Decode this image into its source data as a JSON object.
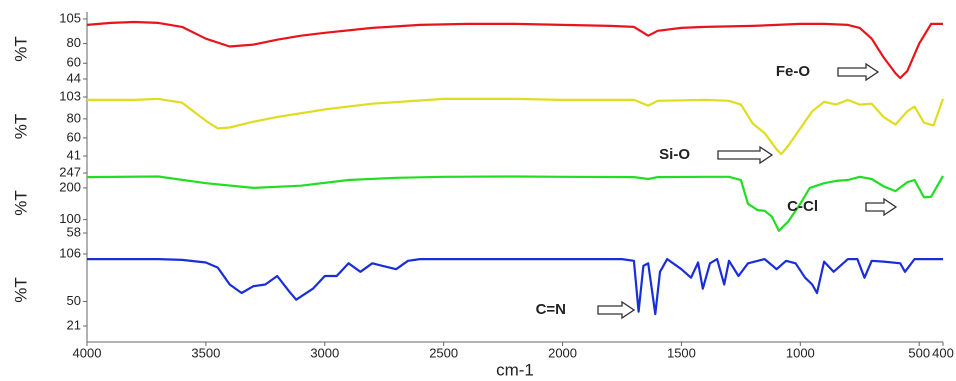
{
  "chart_data": [
    {
      "type": "line",
      "ylabel": "%T",
      "color": "#e8141c",
      "annotation": "Fe-O",
      "xlim": [
        4000,
        400
      ],
      "ylim": [
        44,
        105
      ],
      "yticks": [
        105,
        80,
        60,
        44
      ],
      "x": [
        4000,
        3900,
        3800,
        3700,
        3600,
        3500,
        3400,
        3300,
        3200,
        3100,
        3000,
        2800,
        2600,
        2400,
        2200,
        2000,
        1800,
        1700,
        1640,
        1600,
        1500,
        1400,
        1200,
        1000,
        900,
        800,
        750,
        700,
        650,
        600,
        580,
        550,
        500,
        450,
        400
      ],
      "values": [
        99,
        101,
        102,
        101,
        97,
        85,
        77,
        79,
        84,
        88,
        91,
        96,
        99,
        100,
        100,
        99,
        98,
        97,
        88,
        93,
        96,
        97,
        98,
        100,
        100,
        99,
        96,
        85,
        66,
        50,
        45,
        52,
        80,
        100,
        100
      ]
    },
    {
      "type": "line",
      "ylabel": "%T",
      "color": "#e0dc22",
      "annotation": "Si-O",
      "xlim": [
        4000,
        400
      ],
      "ylim": [
        41,
        103
      ],
      "yticks": [
        103,
        80,
        60,
        41
      ],
      "x": [
        4000,
        3800,
        3700,
        3600,
        3500,
        3450,
        3400,
        3300,
        3200,
        3000,
        2800,
        2500,
        2200,
        2000,
        1800,
        1700,
        1640,
        1600,
        1400,
        1300,
        1250,
        1200,
        1150,
        1100,
        1080,
        1050,
        1000,
        950,
        900,
        850,
        800,
        750,
        700,
        650,
        600,
        550,
        520,
        480,
        440,
        400
      ],
      "values": [
        100,
        100,
        101,
        97,
        78,
        70,
        71,
        77,
        82,
        90,
        96,
        101,
        101,
        100,
        100,
        100,
        94,
        99,
        100,
        99,
        95,
        75,
        65,
        48,
        43,
        52,
        70,
        88,
        98,
        95,
        100,
        95,
        96,
        82,
        74,
        88,
        93,
        76,
        73,
        101
      ]
    },
    {
      "type": "line",
      "ylabel": "%T",
      "color": "#22dd22",
      "annotation": "C-Cl",
      "xlim": [
        4000,
        400
      ],
      "ylim": [
        58,
        247
      ],
      "yticks": [
        247,
        200,
        100,
        58
      ],
      "x": [
        4000,
        3700,
        3500,
        3300,
        3100,
        2900,
        2700,
        2500,
        2200,
        2000,
        1700,
        1640,
        1600,
        1400,
        1300,
        1250,
        1220,
        1180,
        1150,
        1120,
        1090,
        1050,
        1000,
        960,
        900,
        850,
        800,
        750,
        700,
        650,
        600,
        550,
        520,
        480,
        450,
        400
      ],
      "values": [
        234,
        236,
        215,
        200,
        207,
        225,
        232,
        235,
        236,
        235,
        234,
        228,
        234,
        235,
        235,
        225,
        150,
        130,
        128,
        110,
        65,
        95,
        150,
        200,
        215,
        222,
        225,
        235,
        228,
        205,
        190,
        218,
        225,
        170,
        172,
        238
      ]
    },
    {
      "type": "line",
      "ylabel": "%T",
      "color": "#1a2ed8",
      "annotation": "C=N",
      "xlabel": "cm-1",
      "xlim": [
        4000,
        400
      ],
      "xticks": [
        4000,
        3500,
        3000,
        2500,
        2000,
        1500,
        1000,
        500,
        400
      ],
      "ylim": [
        21,
        106
      ],
      "yticks": [
        106,
        50,
        21
      ],
      "x": [
        4000,
        3700,
        3600,
        3500,
        3450,
        3400,
        3350,
        3300,
        3250,
        3200,
        3150,
        3120,
        3050,
        3000,
        2950,
        2900,
        2850,
        2800,
        2700,
        2650,
        2600,
        2400,
        2000,
        1750,
        1700,
        1680,
        1660,
        1640,
        1610,
        1590,
        1560,
        1500,
        1460,
        1430,
        1410,
        1380,
        1350,
        1320,
        1300,
        1260,
        1220,
        1150,
        1100,
        1060,
        1020,
        980,
        950,
        930,
        900,
        860,
        800,
        760,
        730,
        700,
        650,
        580,
        560,
        520,
        450,
        400
      ],
      "values": [
        100,
        100,
        99,
        96,
        90,
        70,
        60,
        68,
        70,
        80,
        62,
        52,
        65,
        80,
        80,
        95,
        85,
        95,
        88,
        98,
        100,
        100,
        100,
        100,
        98,
        38,
        92,
        95,
        35,
        85,
        100,
        88,
        78,
        96,
        65,
        95,
        100,
        70,
        98,
        80,
        95,
        100,
        88,
        98,
        95,
        78,
        70,
        60,
        97,
        85,
        100,
        100,
        78,
        98,
        97,
        95,
        85,
        100,
        100,
        100
      ]
    }
  ]
}
